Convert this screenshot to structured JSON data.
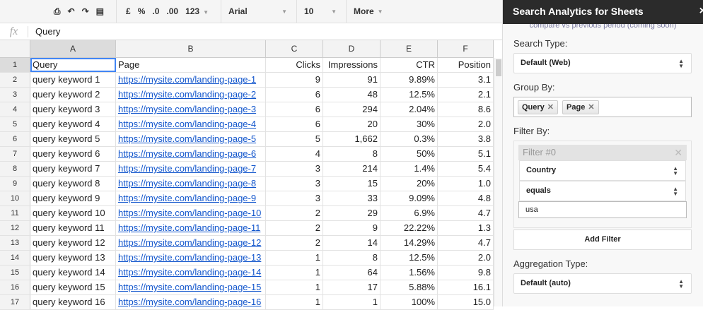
{
  "toolbar": {
    "icons": [
      "print-icon",
      "undo-icon",
      "redo-icon",
      "paint-format-icon"
    ],
    "currency": "£",
    "percent": "%",
    "dec_decrease": ".0",
    "dec_increase": ".00",
    "number_format": "123",
    "font": "Arial",
    "font_size": "10",
    "more": "More"
  },
  "formula_bar": {
    "fx": "fx",
    "value": "Query"
  },
  "columns": [
    "A",
    "B",
    "C",
    "D",
    "E",
    "F"
  ],
  "rows": [
    {
      "n": "1",
      "a": "Query",
      "b": "Page",
      "c": "Clicks",
      "d": "Impressions",
      "e": "CTR",
      "f": "Position"
    },
    {
      "n": "2",
      "a": "query keyword 1",
      "b": "https://mysite.com/landing-page-1",
      "c": "9",
      "d": "91",
      "e": "9.89%",
      "f": "3.1"
    },
    {
      "n": "3",
      "a": "query keyword 2",
      "b": "https://mysite.com/landing-page-2",
      "c": "6",
      "d": "48",
      "e": "12.5%",
      "f": "2.1"
    },
    {
      "n": "4",
      "a": "query keyword 3",
      "b": "https://mysite.com/landing-page-3",
      "c": "6",
      "d": "294",
      "e": "2.04%",
      "f": "8.6"
    },
    {
      "n": "5",
      "a": "query keyword 4",
      "b": "https://mysite.com/landing-page-4",
      "c": "6",
      "d": "20",
      "e": "30%",
      "f": "2.0"
    },
    {
      "n": "6",
      "a": "query keyword 5",
      "b": "https://mysite.com/landing-page-5",
      "c": "5",
      "d": "1,662",
      "e": "0.3%",
      "f": "3.8"
    },
    {
      "n": "7",
      "a": "query keyword 6",
      "b": "https://mysite.com/landing-page-6",
      "c": "4",
      "d": "8",
      "e": "50%",
      "f": "5.1"
    },
    {
      "n": "8",
      "a": "query keyword 7",
      "b": "https://mysite.com/landing-page-7",
      "c": "3",
      "d": "214",
      "e": "1.4%",
      "f": "5.4"
    },
    {
      "n": "9",
      "a": "query keyword 8",
      "b": "https://mysite.com/landing-page-8",
      "c": "3",
      "d": "15",
      "e": "20%",
      "f": "1.0"
    },
    {
      "n": "10",
      "a": "query keyword 9",
      "b": "https://mysite.com/landing-page-9",
      "c": "3",
      "d": "33",
      "e": "9.09%",
      "f": "4.8"
    },
    {
      "n": "11",
      "a": "query keyword 10",
      "b": "https://mysite.com/landing-page-10",
      "c": "2",
      "d": "29",
      "e": "6.9%",
      "f": "4.7"
    },
    {
      "n": "12",
      "a": "query keyword 11",
      "b": "https://mysite.com/landing-page-11",
      "c": "2",
      "d": "9",
      "e": "22.22%",
      "f": "1.3"
    },
    {
      "n": "13",
      "a": "query keyword 12",
      "b": "https://mysite.com/landing-page-12",
      "c": "2",
      "d": "14",
      "e": "14.29%",
      "f": "4.7"
    },
    {
      "n": "14",
      "a": "query keyword 13",
      "b": "https://mysite.com/landing-page-13",
      "c": "1",
      "d": "8",
      "e": "12.5%",
      "f": "2.0"
    },
    {
      "n": "15",
      "a": "query keyword 14",
      "b": "https://mysite.com/landing-page-14",
      "c": "1",
      "d": "64",
      "e": "1.56%",
      "f": "9.8"
    },
    {
      "n": "16",
      "a": "query keyword 15",
      "b": "https://mysite.com/landing-page-15",
      "c": "1",
      "d": "17",
      "e": "5.88%",
      "f": "16.1"
    },
    {
      "n": "17",
      "a": "query keyword 16",
      "b": "https://mysite.com/landing-page-16",
      "c": "1",
      "d": "1",
      "e": "100%",
      "f": "15.0"
    }
  ],
  "sidebar": {
    "title": "Search Analytics for Sheets",
    "close": "×",
    "compare_note": "compare vs previous period (coming soon)",
    "search_type_label": "Search Type:",
    "search_type": "Default (Web)",
    "group_by_label": "Group By:",
    "group_by": [
      "Query",
      "Page"
    ],
    "filter_by_label": "Filter By:",
    "filter": {
      "title": "Filter #0",
      "dimension": "Country",
      "operator": "equals",
      "value": "usa"
    },
    "add_filter": "Add Filter",
    "aggregation_label": "Aggregation Type:",
    "aggregation": "Default (auto)"
  }
}
